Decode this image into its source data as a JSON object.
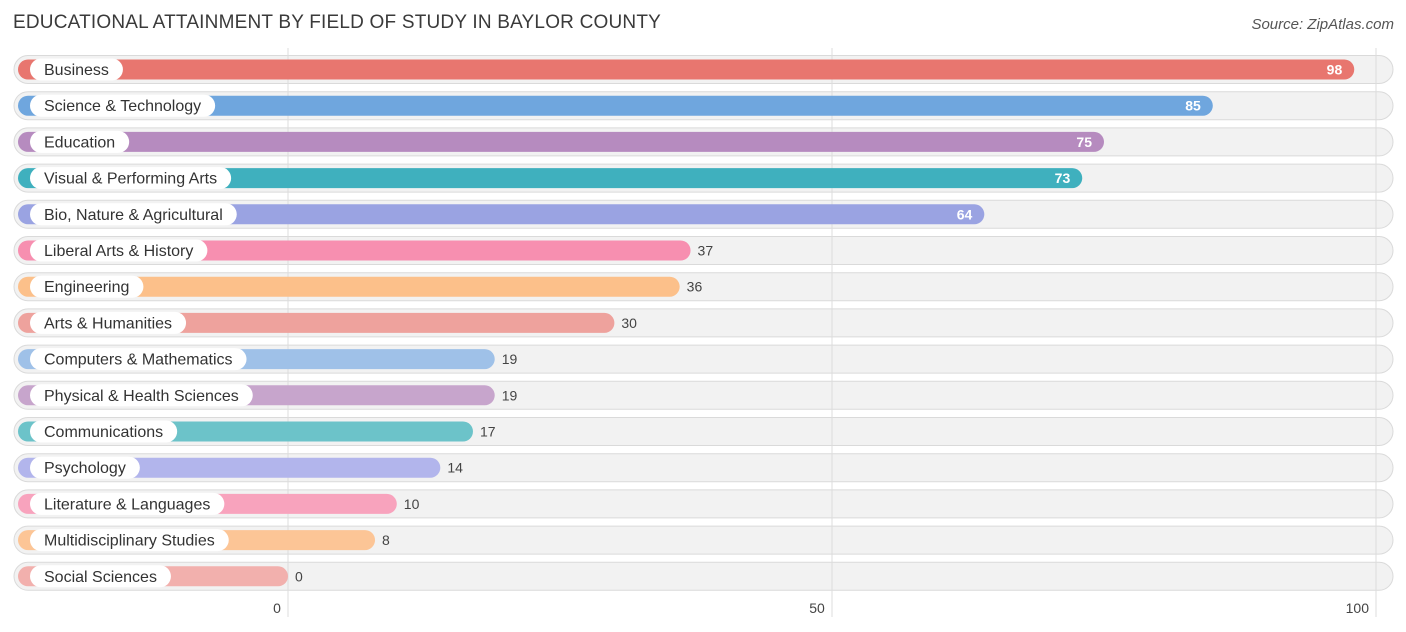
{
  "header": {
    "title": "EDUCATIONAL ATTAINMENT BY FIELD OF STUDY IN BAYLOR COUNTY",
    "source": "Source: ZipAtlas.com"
  },
  "chart_data": {
    "type": "bar",
    "orientation": "horizontal",
    "title": "EDUCATIONAL ATTAINMENT BY FIELD OF STUDY IN BAYLOR COUNTY",
    "categories": [
      "Business",
      "Science & Technology",
      "Education",
      "Visual & Performing Arts",
      "Bio, Nature & Agricultural",
      "Liberal Arts & History",
      "Engineering",
      "Arts & Humanities",
      "Computers & Mathematics",
      "Physical & Health Sciences",
      "Communications",
      "Psychology",
      "Literature & Languages",
      "Multidisciplinary Studies",
      "Social Sciences"
    ],
    "values": [
      98,
      85,
      75,
      73,
      64,
      37,
      36,
      30,
      19,
      19,
      17,
      14,
      10,
      8,
      0
    ],
    "colors": [
      "#e8766f",
      "#6fa6de",
      "#b68bbf",
      "#3fb0be",
      "#9aa3e2",
      "#f78fb0",
      "#fcc08a",
      "#eea29d",
      "#9fc1e8",
      "#c7a5cc",
      "#6cc3c9",
      "#b2b5ec",
      "#f8a3bd",
      "#fcc596",
      "#f2b0ad"
    ],
    "xlim": [
      0,
      100
    ],
    "xticks": [
      0,
      50,
      100
    ],
    "xtick_labels": [
      "0",
      "50",
      "100"
    ],
    "grid": true,
    "legend": "none"
  }
}
